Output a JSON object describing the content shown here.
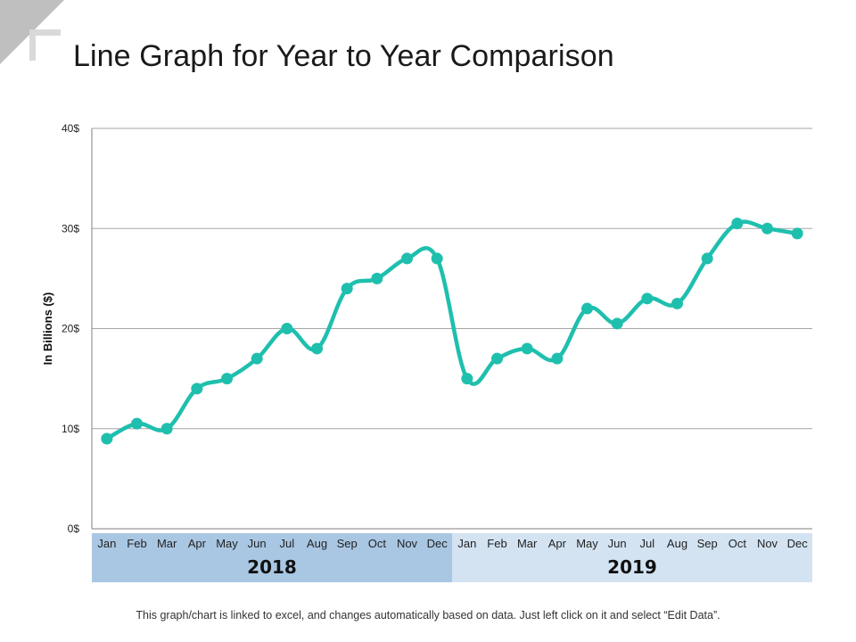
{
  "title": "Line Graph for Year to Year Comparison",
  "footnote": "This graph/chart is linked to excel, and changes automatically based on data. Just left click on it and select “Edit Data”.",
  "colors": {
    "line": "#1fbfae",
    "gridline": "#a6a6a6",
    "axis": "#7f7f7f",
    "year_band_first": "#a9c7e3",
    "year_band_second": "#d3e3f2",
    "corner_dark": "#bfbfbf",
    "corner_light": "#d9d9d9"
  },
  "chart_data": {
    "type": "line",
    "title": "",
    "xlabel": "",
    "ylabel": "In Billions ($)",
    "ylim": [
      0,
      40
    ],
    "yticks": [
      0,
      10,
      20,
      30,
      40
    ],
    "ytick_labels": [
      "0$",
      "10$",
      "20$",
      "30$",
      "40$"
    ],
    "grid": true,
    "legend": "none",
    "categories": [
      "Jan",
      "Feb",
      "Mar",
      "Apr",
      "May",
      "Jun",
      "Jul",
      "Aug",
      "Sep",
      "Oct",
      "Nov",
      "Dec",
      "Jan",
      "Feb",
      "Mar",
      "Apr",
      "May",
      "Jun",
      "Jul",
      "Aug",
      "Sep",
      "Oct",
      "Nov",
      "Dec"
    ],
    "groups": [
      {
        "label": "2018",
        "count": 12
      },
      {
        "label": "2019",
        "count": 12
      }
    ],
    "series": [
      {
        "values": [
          9,
          10.5,
          10,
          14,
          15,
          17,
          20,
          18,
          24,
          25,
          27,
          27,
          15,
          17,
          18,
          17,
          22,
          20.5,
          23,
          22.5,
          27,
          30.5,
          30,
          29.5
        ]
      }
    ]
  }
}
